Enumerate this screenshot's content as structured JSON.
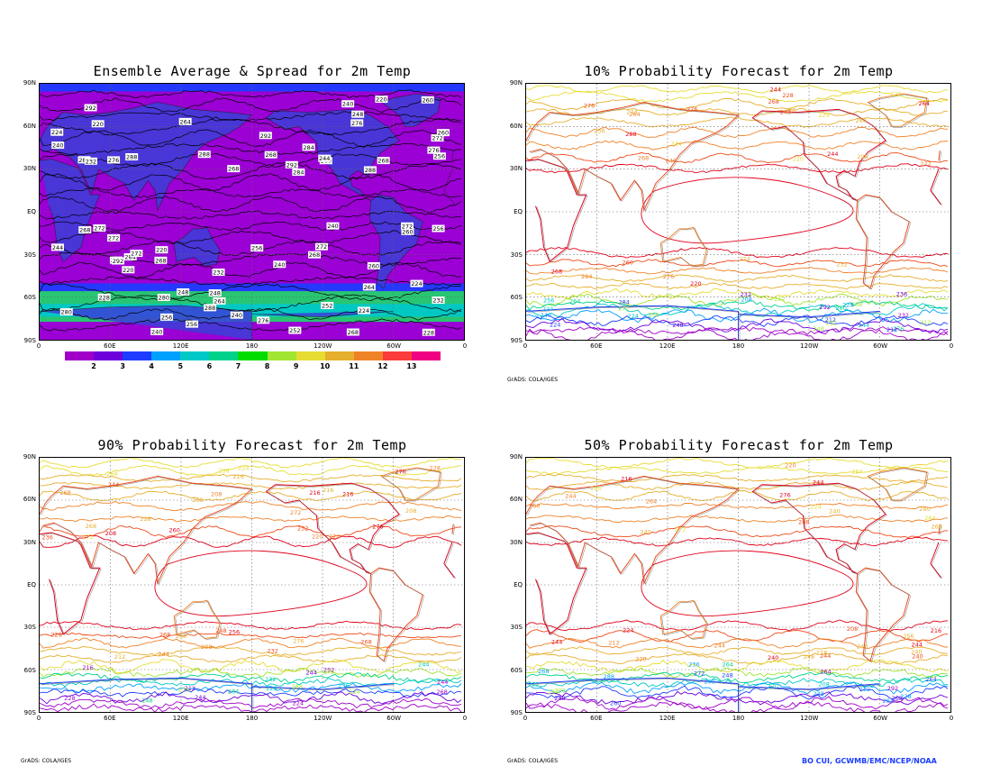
{
  "panels": [
    {
      "title": "Ensemble Average & Spread for 2m Temp",
      "kind": "spread"
    },
    {
      "title": "10% Probability Forecast for 2m Temp",
      "kind": "prob"
    },
    {
      "title": "90% Probability Forecast for 2m Temp",
      "kind": "prob"
    },
    {
      "title": "50% Probability Forecast for 2m Temp",
      "kind": "prob"
    }
  ],
  "lat_labels": [
    "90N",
    "60N",
    "30N",
    "EQ",
    "30S",
    "60S",
    "90S"
  ],
  "lon_labels": [
    "0",
    "60E",
    "120E",
    "180",
    "120W",
    "60W",
    "0"
  ],
  "colorbar": {
    "labels": [
      "2",
      "3",
      "4",
      "5",
      "6",
      "7",
      "8",
      "9",
      "10",
      "11",
      "12",
      "13"
    ],
    "colors": [
      "#a000c8",
      "#6e00dc",
      "#1e3cff",
      "#00a0ff",
      "#00c8c8",
      "#00d28c",
      "#00dc00",
      "#a0e632",
      "#e6dc32",
      "#e6af2d",
      "#f08228",
      "#fa3c3c",
      "#f00082"
    ]
  },
  "contour_labels": {
    "spread": [
      "272",
      "276",
      "280",
      "284",
      "288",
      "292",
      "264",
      "268",
      "260",
      "256",
      "244",
      "240",
      "232",
      "228",
      "224",
      "220",
      "248",
      "252"
    ],
    "prob": [
      "284",
      "280",
      "276",
      "272",
      "268",
      "288",
      "292",
      "264",
      "260",
      "256",
      "252",
      "248",
      "244",
      "240",
      "236",
      "232",
      "228",
      "224",
      "220",
      "216",
      "212",
      "208"
    ]
  },
  "credits": {
    "grads": "GrADS: COLA/IGES",
    "author": "BO CUI, GCWMB/EMC/NCEP/NOAA"
  },
  "palette": {
    "spread_bg": "#9b00d4",
    "spread_band_s": "#22d06e",
    "contour_black": "#000000",
    "prob_levels": [
      "#e0001a",
      "#ee4a1a",
      "#f08228",
      "#e6af2d",
      "#e6dc32",
      "#a0e632",
      "#00d28c",
      "#00c8c8",
      "#00a0ff",
      "#1e3cff",
      "#6e00dc",
      "#a000c8"
    ]
  }
}
